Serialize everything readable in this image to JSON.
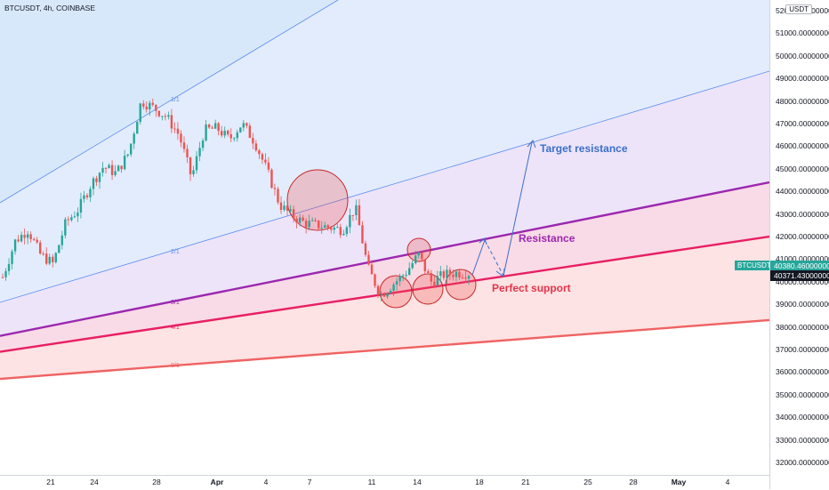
{
  "header": {
    "symbol_title": "BTCUSDT, 4h, COINBASE",
    "currency": "USDT"
  },
  "price_axis": {
    "ticks": [
      "52000.00000000",
      "51000.00000000",
      "50000.00000000",
      "49000.00000000",
      "48000.00000000",
      "47000.00000000",
      "46000.00000000",
      "45000.00000000",
      "44000.00000000",
      "43000.00000000",
      "42000.00000000",
      "41000.00000000",
      "40000.00000000",
      "39000.00000000",
      "38000.00000000",
      "37000.00000000",
      "36000.00000000",
      "35000.00000000",
      "34000.00000000",
      "33000.00000000",
      "32000.00000000"
    ],
    "last_price": "40380.46000000",
    "prev_price": "40371.43000000",
    "symbol_tag": "BTCUSDT"
  },
  "time_axis": {
    "ticks": [
      {
        "label": "21",
        "bold": false
      },
      {
        "label": "24",
        "bold": false
      },
      {
        "label": "28",
        "bold": false
      },
      {
        "label": "Apr",
        "bold": true
      },
      {
        "label": "4",
        "bold": false
      },
      {
        "label": "7",
        "bold": false
      },
      {
        "label": "11",
        "bold": false
      },
      {
        "label": "14",
        "bold": false
      },
      {
        "label": "18",
        "bold": false
      },
      {
        "label": "21",
        "bold": false
      },
      {
        "label": "25",
        "bold": false
      },
      {
        "label": "28",
        "bold": false
      },
      {
        "label": "May",
        "bold": true
      },
      {
        "label": "4",
        "bold": false
      }
    ]
  },
  "annotations": {
    "target_resistance": "Target resistance",
    "resistance": "Resistance",
    "perfect_support": "Perfect support",
    "fib_labels": [
      "1/1",
      "2/1",
      "3/1",
      "4/1",
      "8/1"
    ]
  },
  "colors": {
    "up": "#26a69a",
    "down": "#ef5350",
    "resistance": "#9c27b0",
    "support": "#e91e63",
    "lower": "#f06262",
    "target": "#3b6fc9",
    "channel": "#5b8def"
  },
  "chart_data": {
    "type": "candlestick",
    "symbol": "BTCUSDT",
    "interval": "4h",
    "exchange": "COINBASE",
    "ylim": [
      31500,
      52300
    ],
    "price_path": [
      40200,
      41800,
      42300,
      41200,
      40800,
      42600,
      43200,
      44300,
      45100,
      44800,
      45700,
      48000,
      47700,
      47300,
      46500,
      44600,
      46700,
      46800,
      46300,
      47000,
      46200,
      44900,
      43400,
      42900,
      42600,
      42500,
      42400,
      42300,
      43300,
      40600,
      39400,
      39900,
      40400,
      41200,
      40000,
      40300,
      40400,
      40380
    ],
    "last_price": 40380.46,
    "annotated_levels": {
      "resistance_line": [
        37600,
        44400
      ],
      "support_line": [
        36900,
        42000
      ],
      "lower_line": [
        35700,
        38300
      ]
    },
    "projection": [
      40400,
      41900,
      40700,
      46300
    ]
  }
}
